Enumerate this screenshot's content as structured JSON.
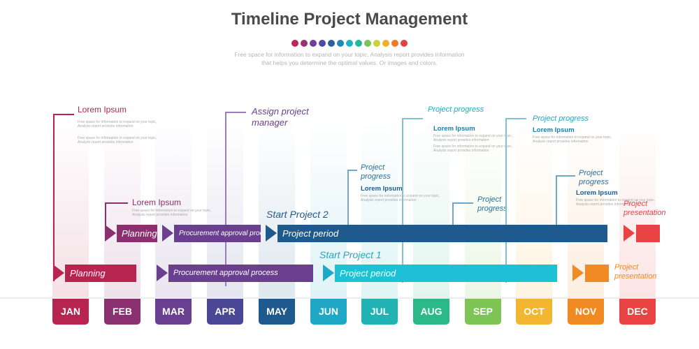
{
  "title": "Timeline Project Management",
  "subtitle": "Free space for information to expand on your topic, Analysis report provides information that helps you determine the optimal values. Or images and colors.",
  "dot_colors": [
    "#c0265a",
    "#9b2f7a",
    "#6f3d9a",
    "#4b4aa6",
    "#2c5fa0",
    "#1e88b8",
    "#1eb4c8",
    "#26b79a",
    "#7cc455",
    "#c8d43a",
    "#f0b02c",
    "#f07a2a",
    "#e84040"
  ],
  "months": [
    {
      "label": "JAN",
      "color": "#b6244f"
    },
    {
      "label": "FEB",
      "color": "#8a2f6f"
    },
    {
      "label": "MAR",
      "color": "#6a3f8f"
    },
    {
      "label": "APR",
      "color": "#4a4796"
    },
    {
      "label": "MAY",
      "color": "#1f5a8f"
    },
    {
      "label": "JUN",
      "color": "#1ea8c6"
    },
    {
      "label": "JUL",
      "color": "#21b3b3"
    },
    {
      "label": "AUG",
      "color": "#2cb98a"
    },
    {
      "label": "SEP",
      "color": "#7ec455"
    },
    {
      "label": "OCT",
      "color": "#f2b630"
    },
    {
      "label": "NOV",
      "color": "#f28a24"
    },
    {
      "label": "DEC",
      "color": "#ea4344"
    }
  ],
  "project1": {
    "start_label": "Start  Project 1",
    "planning": "Planning",
    "procurement": "Procurement approval process",
    "period": "Project period",
    "presentation": "Project\npresentation"
  },
  "project2": {
    "start_label": "Start  Project 2",
    "planning": "Planning",
    "procurement": "Procurement approval process",
    "period": "Project period",
    "presentation": "Project\npresentation"
  },
  "callouts": {
    "jan_head": "Lorem Ipsum",
    "feb_head": "Lorem Ipsum",
    "apr_label": "Assign project\nmanager",
    "jun_label": "Project\nprogress",
    "jun_head": "Lorem Ipsum",
    "jul_label": "Project  progress",
    "jul_head": "Lorem Ipsum",
    "aug_label": "Project\nprogress",
    "sep_label": "Project  progress",
    "sep_head": "Lorem Ipsum",
    "oct_label": "Project\nprogress",
    "oct_head": "Lorem Ipsum",
    "small_text": "Free space for information to expand on your topic, Analysis report provides information"
  }
}
